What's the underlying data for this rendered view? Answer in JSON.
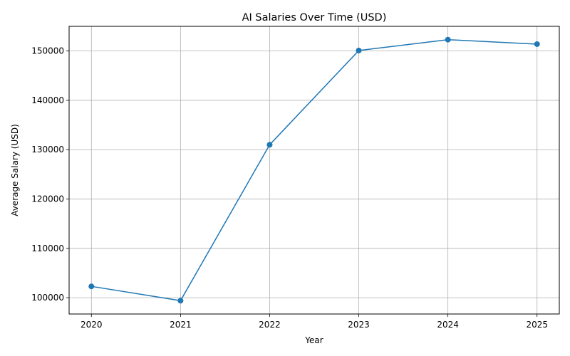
{
  "chart_data": {
    "type": "line",
    "title": "AI Salaries Over Time (USD)",
    "xlabel": "Year",
    "ylabel": "Average Salary (USD)",
    "x": [
      2020,
      2021,
      2022,
      2023,
      2024,
      2025
    ],
    "series": [
      {
        "values": [
          102300,
          99400,
          131000,
          150100,
          152300,
          151400
        ]
      }
    ],
    "xticks": [
      "2020",
      "2021",
      "2022",
      "2023",
      "2024",
      "2025"
    ],
    "yticks": [
      100000,
      110000,
      120000,
      130000,
      140000,
      150000
    ],
    "ytick_labels": [
      "100000",
      "110000",
      "120000",
      "130000",
      "140000",
      "150000"
    ],
    "ylim": [
      96700,
      155000
    ],
    "xlim": [
      2019.75,
      2025.25
    ],
    "grid": true,
    "marker": "circle",
    "color": "#1f77b4"
  }
}
